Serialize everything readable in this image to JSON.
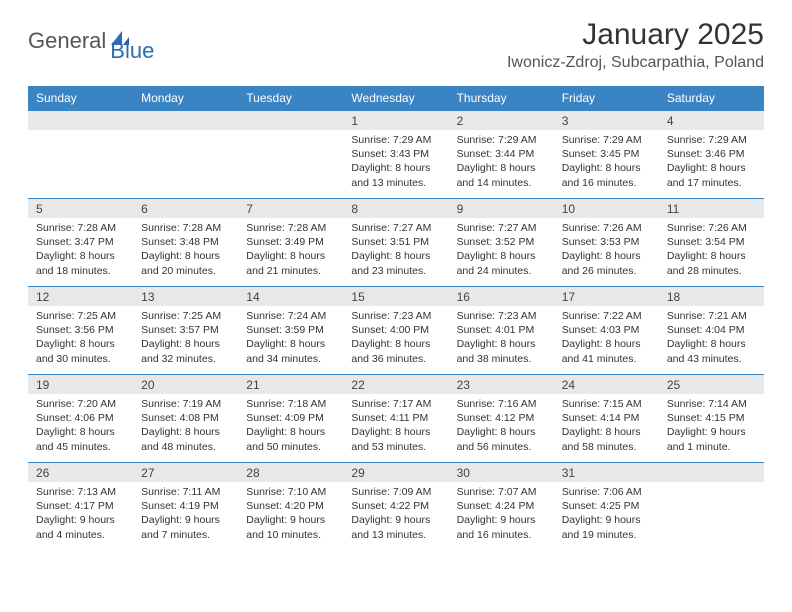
{
  "brand": {
    "part1": "General",
    "part2": "Blue",
    "color_general": "#555555",
    "color_blue": "#2a6db5"
  },
  "title": "January 2025",
  "location": "Iwonicz-Zdroj, Subcarpathia, Poland",
  "colors": {
    "header_bg": "#3b84c4",
    "header_text": "#ffffff",
    "daynum_bg": "#e8e8e8",
    "row_border": "#3b84c4",
    "body_text": "#333333",
    "background": "#ffffff"
  },
  "typography": {
    "title_fontsize": 30,
    "location_fontsize": 16,
    "dayheader_fontsize": 12,
    "body_fontsize": 10.5
  },
  "day_headers": [
    "Sunday",
    "Monday",
    "Tuesday",
    "Wednesday",
    "Thursday",
    "Friday",
    "Saturday"
  ],
  "weeks": [
    [
      null,
      null,
      null,
      {
        "n": "1",
        "sunrise": "7:29 AM",
        "sunset": "3:43 PM",
        "daylight": "8 hours and 13 minutes."
      },
      {
        "n": "2",
        "sunrise": "7:29 AM",
        "sunset": "3:44 PM",
        "daylight": "8 hours and 14 minutes."
      },
      {
        "n": "3",
        "sunrise": "7:29 AM",
        "sunset": "3:45 PM",
        "daylight": "8 hours and 16 minutes."
      },
      {
        "n": "4",
        "sunrise": "7:29 AM",
        "sunset": "3:46 PM",
        "daylight": "8 hours and 17 minutes."
      }
    ],
    [
      {
        "n": "5",
        "sunrise": "7:28 AM",
        "sunset": "3:47 PM",
        "daylight": "8 hours and 18 minutes."
      },
      {
        "n": "6",
        "sunrise": "7:28 AM",
        "sunset": "3:48 PM",
        "daylight": "8 hours and 20 minutes."
      },
      {
        "n": "7",
        "sunrise": "7:28 AM",
        "sunset": "3:49 PM",
        "daylight": "8 hours and 21 minutes."
      },
      {
        "n": "8",
        "sunrise": "7:27 AM",
        "sunset": "3:51 PM",
        "daylight": "8 hours and 23 minutes."
      },
      {
        "n": "9",
        "sunrise": "7:27 AM",
        "sunset": "3:52 PM",
        "daylight": "8 hours and 24 minutes."
      },
      {
        "n": "10",
        "sunrise": "7:26 AM",
        "sunset": "3:53 PM",
        "daylight": "8 hours and 26 minutes."
      },
      {
        "n": "11",
        "sunrise": "7:26 AM",
        "sunset": "3:54 PM",
        "daylight": "8 hours and 28 minutes."
      }
    ],
    [
      {
        "n": "12",
        "sunrise": "7:25 AM",
        "sunset": "3:56 PM",
        "daylight": "8 hours and 30 minutes."
      },
      {
        "n": "13",
        "sunrise": "7:25 AM",
        "sunset": "3:57 PM",
        "daylight": "8 hours and 32 minutes."
      },
      {
        "n": "14",
        "sunrise": "7:24 AM",
        "sunset": "3:59 PM",
        "daylight": "8 hours and 34 minutes."
      },
      {
        "n": "15",
        "sunrise": "7:23 AM",
        "sunset": "4:00 PM",
        "daylight": "8 hours and 36 minutes."
      },
      {
        "n": "16",
        "sunrise": "7:23 AM",
        "sunset": "4:01 PM",
        "daylight": "8 hours and 38 minutes."
      },
      {
        "n": "17",
        "sunrise": "7:22 AM",
        "sunset": "4:03 PM",
        "daylight": "8 hours and 41 minutes."
      },
      {
        "n": "18",
        "sunrise": "7:21 AM",
        "sunset": "4:04 PM",
        "daylight": "8 hours and 43 minutes."
      }
    ],
    [
      {
        "n": "19",
        "sunrise": "7:20 AM",
        "sunset": "4:06 PM",
        "daylight": "8 hours and 45 minutes."
      },
      {
        "n": "20",
        "sunrise": "7:19 AM",
        "sunset": "4:08 PM",
        "daylight": "8 hours and 48 minutes."
      },
      {
        "n": "21",
        "sunrise": "7:18 AM",
        "sunset": "4:09 PM",
        "daylight": "8 hours and 50 minutes."
      },
      {
        "n": "22",
        "sunrise": "7:17 AM",
        "sunset": "4:11 PM",
        "daylight": "8 hours and 53 minutes."
      },
      {
        "n": "23",
        "sunrise": "7:16 AM",
        "sunset": "4:12 PM",
        "daylight": "8 hours and 56 minutes."
      },
      {
        "n": "24",
        "sunrise": "7:15 AM",
        "sunset": "4:14 PM",
        "daylight": "8 hours and 58 minutes."
      },
      {
        "n": "25",
        "sunrise": "7:14 AM",
        "sunset": "4:15 PM",
        "daylight": "9 hours and 1 minute."
      }
    ],
    [
      {
        "n": "26",
        "sunrise": "7:13 AM",
        "sunset": "4:17 PM",
        "daylight": "9 hours and 4 minutes."
      },
      {
        "n": "27",
        "sunrise": "7:11 AM",
        "sunset": "4:19 PM",
        "daylight": "9 hours and 7 minutes."
      },
      {
        "n": "28",
        "sunrise": "7:10 AM",
        "sunset": "4:20 PM",
        "daylight": "9 hours and 10 minutes."
      },
      {
        "n": "29",
        "sunrise": "7:09 AM",
        "sunset": "4:22 PM",
        "daylight": "9 hours and 13 minutes."
      },
      {
        "n": "30",
        "sunrise": "7:07 AM",
        "sunset": "4:24 PM",
        "daylight": "9 hours and 16 minutes."
      },
      {
        "n": "31",
        "sunrise": "7:06 AM",
        "sunset": "4:25 PM",
        "daylight": "9 hours and 19 minutes."
      },
      null
    ]
  ],
  "labels": {
    "sunrise": "Sunrise:",
    "sunset": "Sunset:",
    "daylight": "Daylight:"
  }
}
